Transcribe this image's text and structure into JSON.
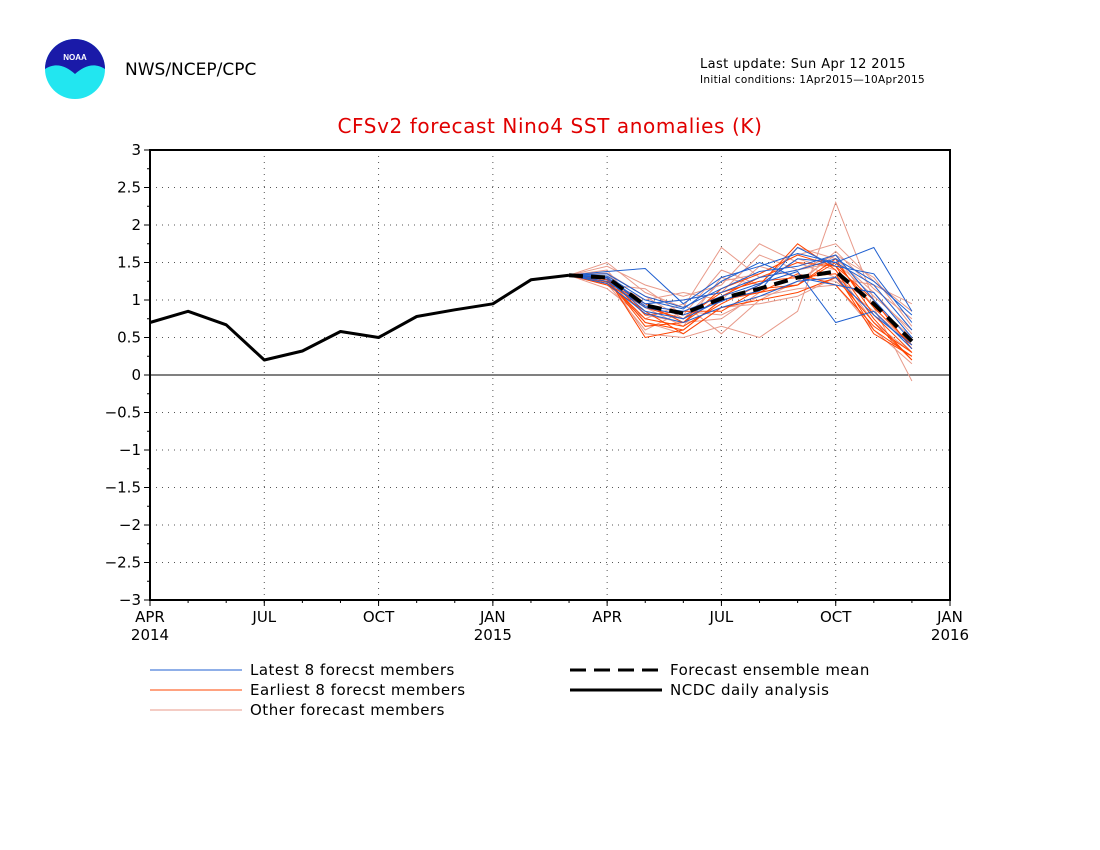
{
  "header": {
    "org": "NWS/NCEP/CPC",
    "last_update": "Last update: Sun Apr 12 2015",
    "initial_conditions": "Initial conditions: 1Apr2015—10Apr2015",
    "logo_text": "NOAA"
  },
  "chart_data": {
    "type": "line",
    "title": "CFSv2 forecast Nino4 SST anomalies (K)",
    "xlabel": "",
    "ylabel": "",
    "ylim": [
      -3,
      3
    ],
    "xlim": [
      "2014-04",
      "2016-01"
    ],
    "yticks": [
      3,
      2.5,
      2,
      1.5,
      1,
      0.5,
      0,
      -0.5,
      -1,
      -1.5,
      -2,
      -2.5,
      -3
    ],
    "ytick_labels": [
      "3",
      "2.5",
      "2",
      "1.5",
      "1",
      "0.5",
      "0",
      "−0.5",
      "−1",
      "−1.5",
      "−2",
      "−2.5",
      "−3"
    ],
    "xticks": [
      {
        "date": "2014-04",
        "label": "APR",
        "year": "2014"
      },
      {
        "date": "2014-07",
        "label": "JUL",
        "year": ""
      },
      {
        "date": "2014-10",
        "label": "OCT",
        "year": ""
      },
      {
        "date": "2015-01",
        "label": "JAN",
        "year": "2015"
      },
      {
        "date": "2015-04",
        "label": "APR",
        "year": ""
      },
      {
        "date": "2015-07",
        "label": "JUL",
        "year": ""
      },
      {
        "date": "2015-10",
        "label": "OCT",
        "year": ""
      },
      {
        "date": "2016-01",
        "label": "JAN",
        "year": "2016"
      }
    ],
    "grid": true,
    "legend": [
      {
        "label": "Latest 8 forecst members",
        "color": "#1f5fd0",
        "style": "thin"
      },
      {
        "label": "Earliest 8 forecst members",
        "color": "#ff4400",
        "style": "thin"
      },
      {
        "label": "Other forecast members",
        "color": "#e89a8a",
        "style": "thin"
      },
      {
        "label": "Forecast ensemble mean",
        "color": "#000000",
        "style": "dashed"
      },
      {
        "label": "NCDC daily analysis",
        "color": "#000000",
        "style": "solid"
      }
    ],
    "forecast_months": [
      "2015-03",
      "2015-04",
      "2015-05",
      "2015-06",
      "2015-07",
      "2015-08",
      "2015-09",
      "2015-10",
      "2015-11",
      "2015-12"
    ],
    "analysis": {
      "name": "NCDC daily analysis",
      "x": [
        "2014-04",
        "2014-05",
        "2014-06",
        "2014-07",
        "2014-08",
        "2014-09",
        "2014-10",
        "2014-11",
        "2014-12",
        "2015-01",
        "2015-02",
        "2015-03"
      ],
      "values": [
        0.7,
        0.85,
        0.67,
        0.2,
        0.32,
        0.58,
        0.5,
        0.78,
        0.87,
        0.95,
        1.27,
        1.33
      ]
    },
    "ensemble_mean": {
      "name": "Forecast ensemble mean",
      "values": [
        1.33,
        1.3,
        0.93,
        0.82,
        1.02,
        1.15,
        1.3,
        1.38,
        0.95,
        0.45
      ]
    },
    "latest_members": [
      [
        1.33,
        1.38,
        1.42,
        0.95,
        1.3,
        1.45,
        1.62,
        1.5,
        1.7,
        0.85
      ],
      [
        1.33,
        1.3,
        0.92,
        0.85,
        1.05,
        1.22,
        1.38,
        0.7,
        0.85,
        0.35
      ],
      [
        1.33,
        1.25,
        0.9,
        0.8,
        0.98,
        1.2,
        1.55,
        1.5,
        1.2,
        0.6
      ],
      [
        1.33,
        1.35,
        1.05,
        0.9,
        1.15,
        1.38,
        1.45,
        1.6,
        1.0,
        0.45
      ],
      [
        1.33,
        1.28,
        0.85,
        0.75,
        1.0,
        1.12,
        1.7,
        1.45,
        1.35,
        0.7
      ],
      [
        1.33,
        1.32,
        1.0,
        0.88,
        1.25,
        1.5,
        1.3,
        1.2,
        1.1,
        0.5
      ],
      [
        1.33,
        1.22,
        0.82,
        0.7,
        0.9,
        1.05,
        1.25,
        1.3,
        0.8,
        0.4
      ],
      [
        1.33,
        1.3,
        0.95,
        1.0,
        1.1,
        1.3,
        1.4,
        1.55,
        1.25,
        0.8
      ]
    ],
    "earliest_members": [
      [
        1.33,
        1.3,
        0.5,
        0.6,
        1.0,
        1.1,
        1.2,
        1.55,
        0.8,
        0.3
      ],
      [
        1.33,
        1.25,
        0.75,
        0.65,
        0.95,
        1.2,
        1.75,
        1.4,
        0.6,
        0.25
      ],
      [
        1.33,
        1.2,
        0.85,
        0.55,
        0.9,
        1.0,
        1.1,
        1.3,
        0.7,
        0.2
      ],
      [
        1.33,
        1.28,
        0.65,
        0.7,
        1.05,
        1.3,
        1.5,
        1.45,
        1.0,
        0.35
      ],
      [
        1.33,
        1.22,
        0.9,
        0.75,
        1.1,
        1.25,
        1.3,
        1.35,
        0.55,
        0.25
      ],
      [
        1.33,
        1.3,
        0.8,
        0.85,
        0.85,
        1.15,
        1.2,
        1.5,
        0.9,
        0.4
      ],
      [
        1.33,
        1.27,
        0.7,
        0.6,
        1.0,
        1.1,
        1.35,
        1.2,
        0.65,
        0.3
      ],
      [
        1.33,
        1.24,
        0.95,
        0.7,
        1.15,
        1.35,
        1.6,
        1.45,
        0.75,
        0.2
      ]
    ],
    "other_members": [
      [
        1.33,
        1.5,
        1.1,
        0.9,
        1.7,
        1.3,
        1.4,
        1.6,
        1.3,
        0.65
      ],
      [
        1.33,
        1.3,
        0.55,
        0.5,
        0.65,
        0.5,
        0.85,
        2.3,
        1.0,
        0.35
      ],
      [
        1.33,
        1.45,
        1.2,
        1.05,
        1.2,
        1.75,
        1.5,
        1.3,
        1.2,
        0.95
      ],
      [
        1.33,
        1.15,
        0.75,
        0.95,
        0.55,
        1.0,
        1.25,
        1.6,
        0.9,
        -0.08
      ],
      [
        1.33,
        1.35,
        0.9,
        0.65,
        1.3,
        1.2,
        1.7,
        1.55,
        1.1,
        0.55
      ],
      [
        1.33,
        1.25,
        1.0,
        1.1,
        1.0,
        1.45,
        1.3,
        1.25,
        0.85,
        0.4
      ],
      [
        1.33,
        1.4,
        0.8,
        0.7,
        0.75,
        1.1,
        1.2,
        1.65,
        1.15,
        0.75
      ],
      [
        1.33,
        1.2,
        1.15,
        0.8,
        1.4,
        1.2,
        1.55,
        1.4,
        0.7,
        0.3
      ],
      [
        1.33,
        1.32,
        0.7,
        0.55,
        0.9,
        0.95,
        1.05,
        1.3,
        0.95,
        0.5
      ],
      [
        1.33,
        1.28,
        0.95,
        1.0,
        1.1,
        1.6,
        1.4,
        1.5,
        1.05,
        0.6
      ],
      [
        1.33,
        1.36,
        1.05,
        0.75,
        1.25,
        1.35,
        1.6,
        1.75,
        1.25,
        0.85
      ],
      [
        1.33,
        1.22,
        0.6,
        0.85,
        0.8,
        1.05,
        1.15,
        1.2,
        0.6,
        0.15
      ]
    ]
  }
}
